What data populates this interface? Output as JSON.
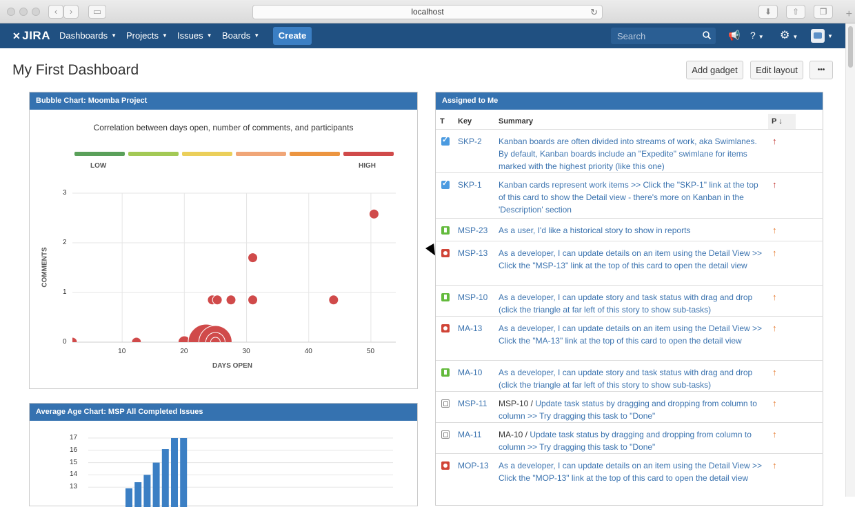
{
  "browser": {
    "url": "localhost"
  },
  "header": {
    "logo": "JIRA",
    "menu": [
      {
        "label": "Dashboards"
      },
      {
        "label": "Projects"
      },
      {
        "label": "Issues"
      },
      {
        "label": "Boards"
      }
    ],
    "create_label": "Create",
    "search_placeholder": "Search",
    "icons": [
      "megaphone-icon",
      "help-icon",
      "gear-icon",
      "avatar"
    ]
  },
  "page": {
    "title": "My First Dashboard",
    "add_gadget": "Add gadget",
    "edit_layout": "Edit layout",
    "more": "•••"
  },
  "bubble_gadget": {
    "title": "Bubble Chart: Moomba Project",
    "chart_data": {
      "type": "scatter",
      "title": "Correlation between days open, number of comments, and participants",
      "xlabel": "DAYS OPEN",
      "ylabel": "COMMENTS",
      "xticks": [
        "10",
        "20",
        "30",
        "40",
        "50"
      ],
      "yticks": [
        "0",
        "1",
        "2",
        "3"
      ],
      "xlim": [
        2,
        54
      ],
      "ylim": [
        0,
        3
      ],
      "legend": {
        "low": "LOW",
        "high": "HIGH",
        "colors": [
          "#5aa05a",
          "#a3c955",
          "#ebcf5a",
          "#f0a678",
          "#ec9540",
          "#d04a4a"
        ]
      },
      "points": [
        {
          "x": 2,
          "y": 0,
          "size": 7
        },
        {
          "x": 12.3,
          "y": 0,
          "size": 7
        },
        {
          "x": 24.5,
          "y": 0.85,
          "size": 7
        },
        {
          "x": 25.3,
          "y": 0.85,
          "size": 7
        },
        {
          "x": 27.5,
          "y": 0.85,
          "size": 7
        },
        {
          "x": 31,
          "y": 0.85,
          "size": 7
        },
        {
          "x": 31,
          "y": 1.7,
          "size": 7
        },
        {
          "x": 44,
          "y": 0.85,
          "size": 7
        },
        {
          "x": 50.5,
          "y": 2.58,
          "size": 7
        },
        {
          "x": 20,
          "y": 0,
          "size": 9
        },
        {
          "x": 23.5,
          "y": 0,
          "size": 26
        },
        {
          "x": 25,
          "y": 0,
          "size": 24
        },
        {
          "x": 25,
          "y": 0,
          "size": 14
        },
        {
          "x": 25,
          "y": 0,
          "size": 7
        }
      ],
      "bubble_color": "#d04a4a"
    }
  },
  "age_gadget": {
    "title": "Average Age Chart: MSP All Completed Issues",
    "chart_data": {
      "type": "bar",
      "yticks": [
        "17",
        "16",
        "15",
        "14",
        "13"
      ],
      "ylim": [
        12,
        17.5
      ],
      "values": [
        12.9,
        13.4,
        14.0,
        15.0,
        16.1,
        17.0,
        17.0
      ],
      "bar_color": "#3b7fc4"
    }
  },
  "assigned_gadget": {
    "title": "Assigned to Me",
    "columns": {
      "type": "T",
      "key": "Key",
      "summary": "Summary",
      "priority": "P ↓"
    },
    "rows": [
      {
        "type": "task",
        "key": "SKP-2",
        "parent": "",
        "summary": "Kanban boards are often divided into streams of work, aka Swimlanes. By default, Kanban boards include an \"Expedite\" swimlane for items marked with the highest priority (like this one)",
        "priority": "high",
        "arrow": "↑"
      },
      {
        "type": "task",
        "key": "SKP-1",
        "parent": "",
        "summary": "Kanban cards represent work items >> Click the \"SKP-1\" link at the top of this card to show the Detail view - there's more on Kanban in the 'Description' section",
        "priority": "high",
        "arrow": "↑"
      },
      {
        "type": "story",
        "key": "MSP-23",
        "parent": "",
        "summary": "As a user, I'd like a historical story to show in reports",
        "priority": "med",
        "arrow": "↑"
      },
      {
        "type": "bug",
        "key": "MSP-13",
        "parent": "",
        "summary": "As a developer, I can update details on an item using the Detail View >> Click the \"MSP-13\" link at the top of this card to open the detail view",
        "priority": "med",
        "arrow": "↑"
      },
      {
        "type": "story",
        "key": "MSP-10",
        "parent": "",
        "summary": "As a developer, I can update story and task status with drag and drop (click the triangle at far left of this story to show sub-tasks)",
        "priority": "med",
        "arrow": "↑"
      },
      {
        "type": "bug",
        "key": "MA-13",
        "parent": "",
        "summary": "As a developer, I can update details on an item using the Detail View >> Click the \"MA-13\" link at the top of this card to open the detail view",
        "priority": "med",
        "arrow": "↑"
      },
      {
        "type": "story",
        "key": "MA-10",
        "parent": "",
        "summary": "As a developer, I can update story and task status with drag and drop (click the triangle at far left of this story to show sub-tasks)",
        "priority": "med",
        "arrow": "↑"
      },
      {
        "type": "sub",
        "key": "MSP-11",
        "parent": "MSP-10 / ",
        "summary": "Update task status by dragging and dropping from column to column >> Try dragging this task to \"Done\"",
        "priority": "med",
        "arrow": "↑"
      },
      {
        "type": "sub",
        "key": "MA-11",
        "parent": "MA-10 / ",
        "summary": "Update task status by dragging and dropping from column to column >> Try dragging this task to \"Done\"",
        "priority": "med",
        "arrow": "↑"
      },
      {
        "type": "bug",
        "key": "MOP-13",
        "parent": "",
        "summary": "As a developer, I can update details on an item using the Detail View >> Click the \"MOP-13\" link at the top of this card to open the detail view",
        "priority": "med",
        "arrow": "↑"
      }
    ]
  }
}
